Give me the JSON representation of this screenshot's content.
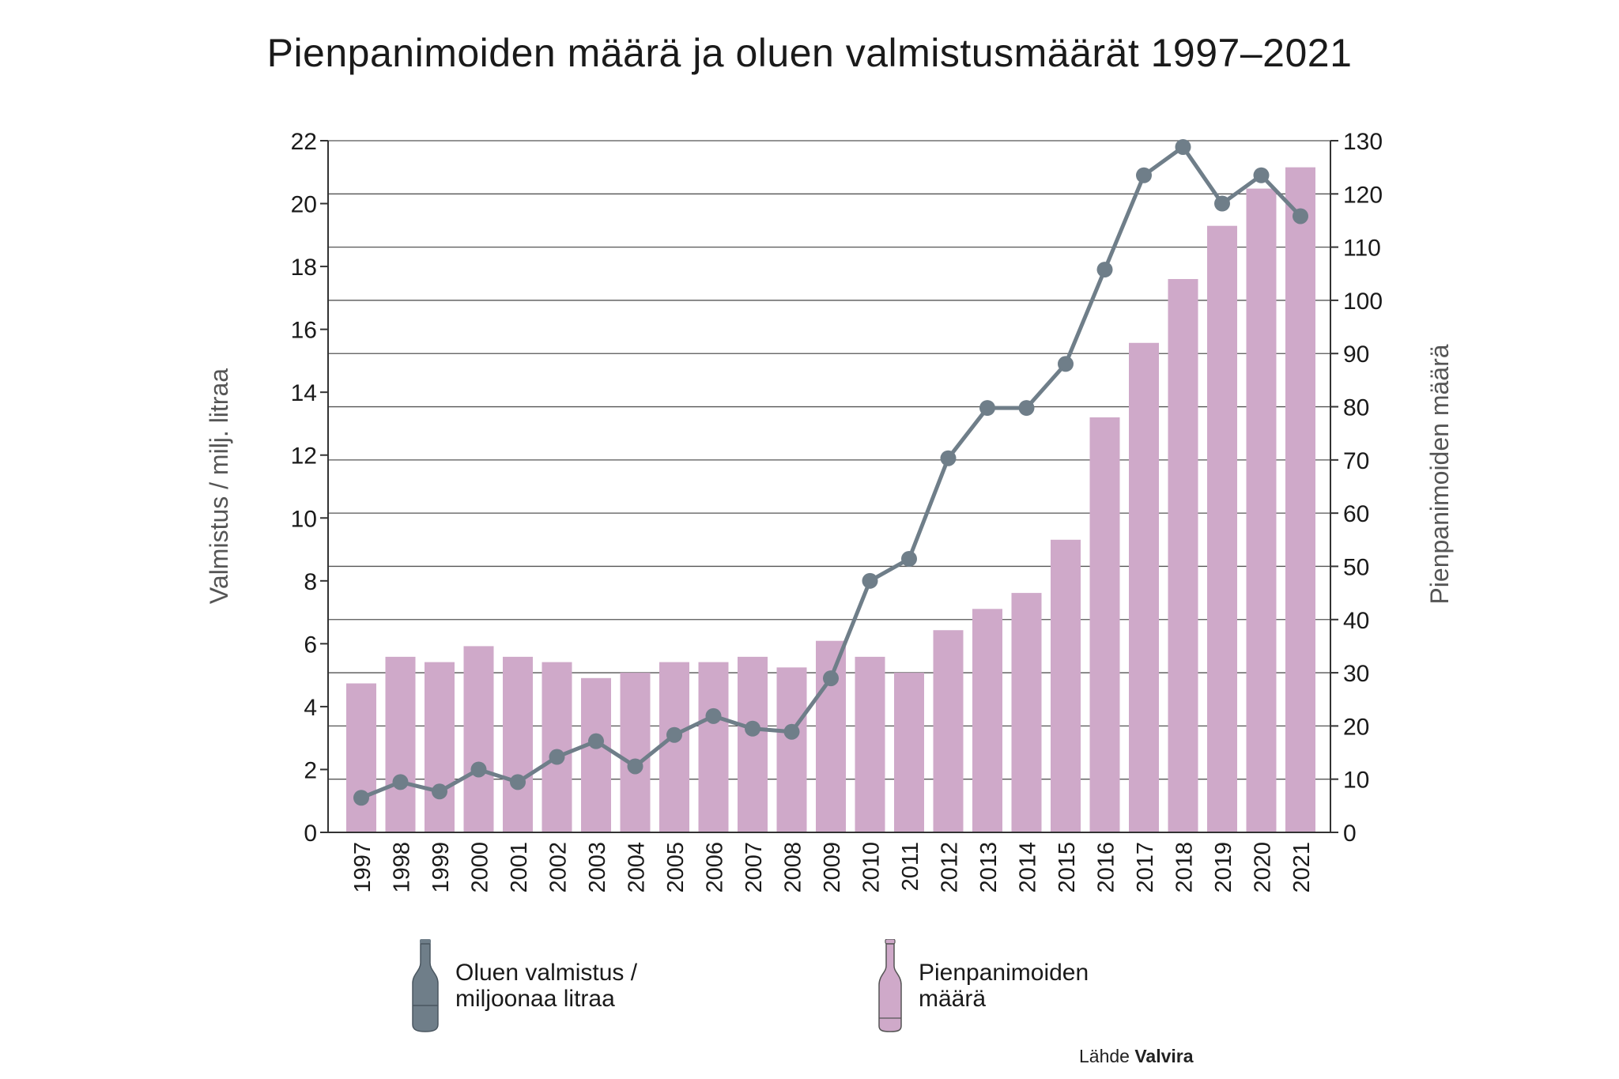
{
  "title": "Pienpanimoiden määrä ja oluen valmistusmäärät 1997–2021",
  "legend": {
    "production_line1": "Oluen valmistus /",
    "production_line2": "miljoonaa litraa",
    "breweries_line1": "Pienpanimoiden",
    "breweries_line2": "määrä"
  },
  "source": {
    "prefix": "Lähde",
    "name": "Valvira"
  },
  "colors": {
    "bars": "#cfa9c9",
    "line": "#6f7e89",
    "grid": "#555555",
    "axis": "#333333"
  },
  "icons": {
    "production": "bottle-icon-gray",
    "breweries": "bottle-icon-pink"
  },
  "chart_data": {
    "type": "bar",
    "categories": [
      "1997",
      "1998",
      "1999",
      "2000",
      "2001",
      "2002",
      "2003",
      "2004",
      "2005",
      "2006",
      "2007",
      "2008",
      "2009",
      "2010",
      "2011",
      "2012",
      "2013",
      "2014",
      "2015",
      "2016",
      "2017",
      "2018",
      "2019",
      "2020",
      "2021"
    ],
    "ylabel_left": "Valmistus / milj. litraa",
    "ylabel_right": "Pienpanimoiden määrä",
    "ylim_left": [
      0,
      22
    ],
    "ylim_right": [
      0,
      130
    ],
    "yticks_left": [
      "0",
      "2",
      "4",
      "6",
      "8",
      "10",
      "12",
      "14",
      "16",
      "18",
      "20",
      "22"
    ],
    "yticks_right": [
      "0",
      "10",
      "20",
      "30",
      "40",
      "50",
      "60",
      "70",
      "80",
      "90",
      "100",
      "110",
      "120",
      "130"
    ],
    "grid": true,
    "series": [
      {
        "name": "Pienpanimoiden määrä",
        "type": "bar",
        "axis": "right",
        "values": [
          28,
          33,
          32,
          35,
          33,
          32,
          29,
          30,
          32,
          32,
          33,
          31,
          36,
          33,
          30,
          38,
          42,
          45,
          55,
          78,
          92,
          104,
          114,
          121,
          125
        ]
      },
      {
        "name": "Oluen valmistus / miljoonaa litraa",
        "type": "line",
        "axis": "left",
        "values": [
          1.1,
          1.6,
          1.3,
          2.0,
          1.6,
          2.4,
          2.9,
          2.1,
          3.1,
          3.7,
          3.3,
          3.2,
          4.9,
          8.0,
          8.7,
          11.9,
          13.5,
          13.5,
          14.9,
          17.9,
          20.9,
          21.8,
          20.0,
          20.9,
          19.6
        ]
      }
    ]
  }
}
